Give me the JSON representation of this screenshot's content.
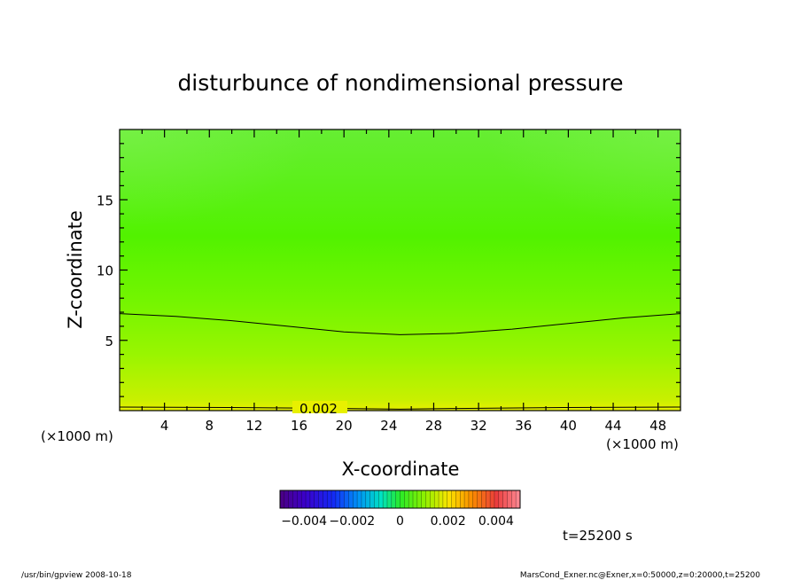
{
  "chart_data": {
    "type": "heatmap",
    "title": "disturbunce of nondimensional pressure",
    "xlabel": "X-coordinate",
    "ylabel": "Z-coordinate",
    "x_unit_left": "(×1000 m)",
    "x_unit_right": "(×1000 m)",
    "xlim": [
      0,
      50
    ],
    "ylim": [
      0,
      20
    ],
    "x_ticks": [
      "4",
      "8",
      "12",
      "16",
      "20",
      "24",
      "28",
      "32",
      "36",
      "40",
      "44",
      "48"
    ],
    "y_ticks": [
      "5",
      "10",
      "15"
    ],
    "contour_label": "0.002",
    "contours": [
      {
        "level": 0.002,
        "points": [
          [
            0,
            6.9
          ],
          [
            5,
            6.7
          ],
          [
            10,
            6.4
          ],
          [
            15,
            6.0
          ],
          [
            20,
            5.6
          ],
          [
            25,
            5.4
          ],
          [
            30,
            5.5
          ],
          [
            35,
            5.8
          ],
          [
            40,
            6.2
          ],
          [
            45,
            6.6
          ],
          [
            50,
            6.9
          ]
        ]
      },
      {
        "level": 0.002,
        "points": [
          [
            0,
            0.25
          ],
          [
            10,
            0.22
          ],
          [
            20,
            0.15
          ],
          [
            25,
            0.1
          ],
          [
            30,
            0.15
          ],
          [
            40,
            0.22
          ],
          [
            50,
            0.25
          ]
        ]
      }
    ],
    "field_description": "value decreases with height; about 0.0022 near z=0 to about 0.0004 at z=20",
    "field_colors": {
      "z0": "#e8f000",
      "z1": "#c8f000",
      "z4": "#99f500",
      "z8": "#72f500",
      "z12": "#52f200",
      "z20": "#66ee33"
    },
    "colorbar": {
      "range": [
        -0.005,
        0.005
      ],
      "tick_labels": [
        "−0.004",
        "−0.002",
        "0",
        "0.002",
        "0.004"
      ],
      "tick_values": [
        -0.004,
        -0.002,
        0,
        0.002,
        0.004
      ]
    },
    "time_label": "t=25200 s"
  },
  "footer": {
    "left": "/usr/bin/gpview   2008-10-18",
    "right": "MarsCond_Exner.nc@Exner,x=0:50000,z=0:20000,t=25200"
  }
}
